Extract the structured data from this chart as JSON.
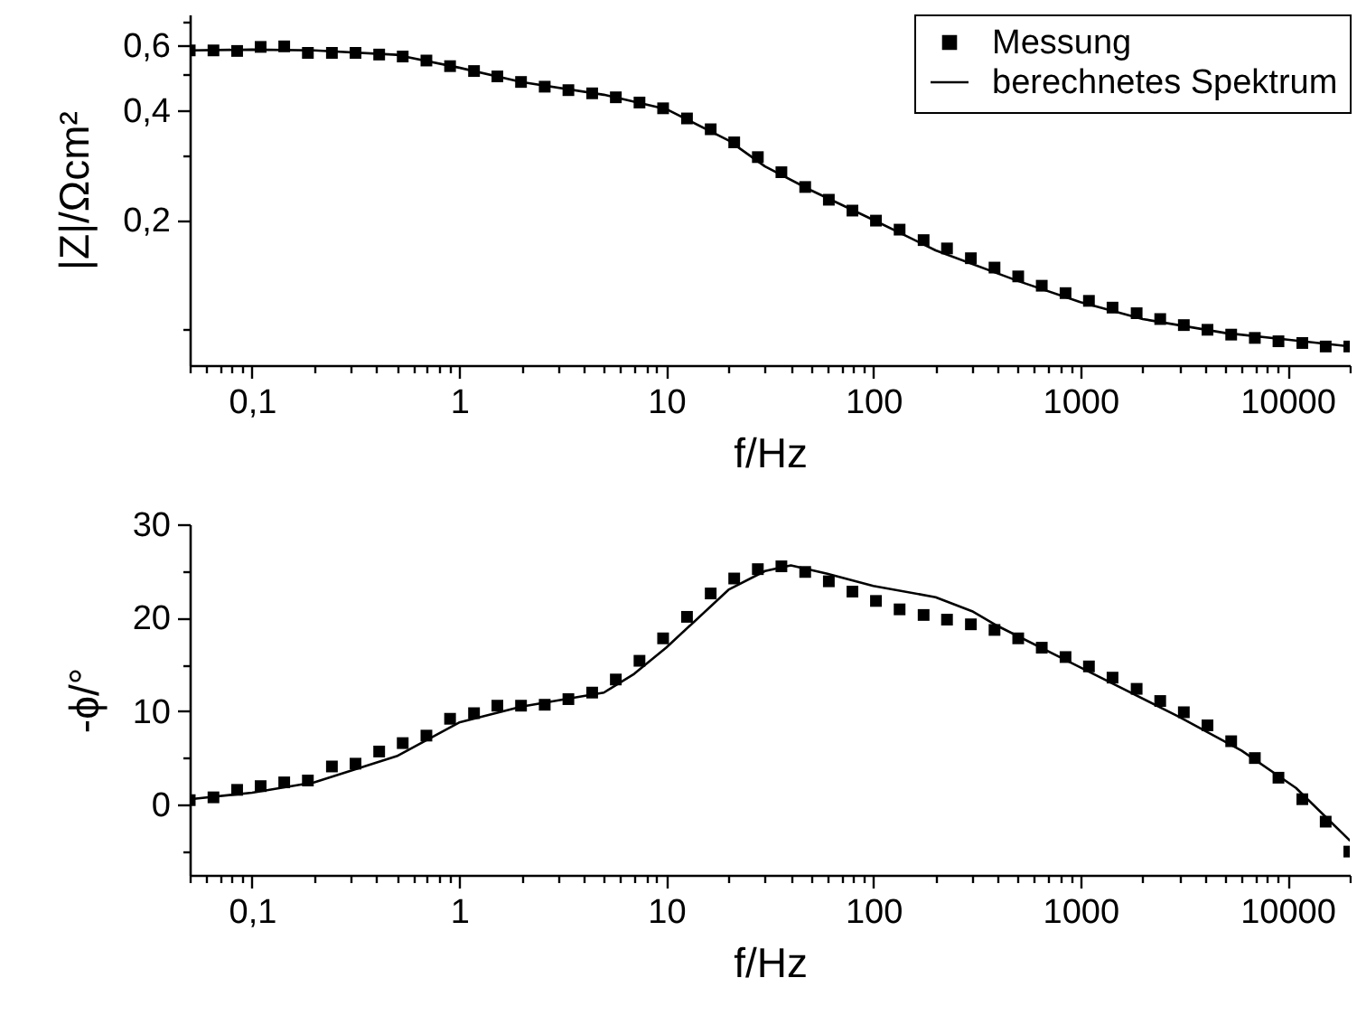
{
  "chart_data": [
    {
      "type": "scatter",
      "xlabel": "f/Hz",
      "ylabel": "|Z|/Ωcm²",
      "log": "xy",
      "legend": "top right",
      "xlim": [
        0.05,
        20000
      ],
      "ylim": [
        0.08,
        0.73
      ],
      "xticks": [
        {
          "value": 0.05,
          "label": null
        },
        {
          "value": 0.06,
          "label": null
        },
        {
          "value": 0.07,
          "label": null
        },
        {
          "value": 0.08,
          "label": null
        },
        {
          "value": 0.09,
          "label": null
        },
        {
          "value": 0.1,
          "label": "0,1"
        },
        {
          "value": 0.2,
          "label": null
        },
        {
          "value": 0.3,
          "label": null
        },
        {
          "value": 0.4,
          "label": null
        },
        {
          "value": 0.5,
          "label": null
        },
        {
          "value": 0.6,
          "label": null
        },
        {
          "value": 0.7,
          "label": null
        },
        {
          "value": 0.8,
          "label": null
        },
        {
          "value": 0.9,
          "label": null
        },
        1,
        {
          "value": 2,
          "label": null
        },
        {
          "value": 3,
          "label": null
        },
        {
          "value": 4,
          "label": null
        },
        {
          "value": 5,
          "label": null
        },
        {
          "value": 6,
          "label": null
        },
        {
          "value": 7,
          "label": null
        },
        {
          "value": 8,
          "label": null
        },
        {
          "value": 9,
          "label": null
        },
        10,
        {
          "value": 20,
          "label": null
        },
        {
          "value": 30,
          "label": null
        },
        {
          "value": 40,
          "label": null
        },
        {
          "value": 50,
          "label": null
        },
        {
          "value": 60,
          "label": null
        },
        {
          "value": 70,
          "label": null
        },
        {
          "value": 80,
          "label": null
        },
        {
          "value": 90,
          "label": null
        },
        100,
        {
          "value": 200,
          "label": null
        },
        {
          "value": 300,
          "label": null
        },
        {
          "value": 400,
          "label": null
        },
        {
          "value": 500,
          "label": null
        },
        {
          "value": 600,
          "label": null
        },
        {
          "value": 700,
          "label": null
        },
        {
          "value": 800,
          "label": null
        },
        {
          "value": 900,
          "label": null
        },
        1000,
        {
          "value": 2000,
          "label": null
        },
        {
          "value": 3000,
          "label": null
        },
        {
          "value": 4000,
          "label": null
        },
        {
          "value": 5000,
          "label": null
        },
        {
          "value": 6000,
          "label": null
        },
        {
          "value": 7000,
          "label": null
        },
        {
          "value": 8000,
          "label": null
        },
        {
          "value": 9000,
          "label": null
        },
        10000,
        {
          "value": 20000,
          "label": null
        }
      ],
      "yticks": [
        {
          "value": 0.1,
          "label": null
        },
        {
          "value": 0.2,
          "label": "0,2"
        },
        {
          "value": 0.3,
          "label": null
        },
        {
          "value": 0.4,
          "label": "0,4"
        },
        {
          "value": 0.5,
          "label": null
        },
        {
          "value": 0.6,
          "label": "0,6"
        },
        {
          "value": 0.7,
          "label": null
        }
      ],
      "x": [
        0.05,
        0.0651,
        0.0847,
        0.11,
        0.143,
        0.186,
        0.243,
        0.316,
        0.411,
        0.534,
        0.695,
        0.904,
        1.18,
        1.53,
        1.99,
        2.59,
        3.37,
        4.39,
        5.71,
        7.43,
        9.66,
        12.6,
        16.4,
        21.3,
        27.7,
        36.0,
        46.9,
        61.0,
        79.3,
        103,
        134,
        175,
        227,
        296,
        385,
        501,
        651,
        848,
        1100,
        1430,
        1870,
        2430,
        3160,
        4110,
        5350,
        6960,
        9050,
        11800,
        15300,
        19900
      ],
      "series": [
        {
          "name": "Messung",
          "marker": "square",
          "color": "#000000",
          "values": [
            0.582,
            0.582,
            0.58,
            0.595,
            0.597,
            0.573,
            0.573,
            0.573,
            0.567,
            0.56,
            0.546,
            0.527,
            0.511,
            0.494,
            0.477,
            0.463,
            0.453,
            0.444,
            0.433,
            0.419,
            0.404,
            0.379,
            0.354,
            0.326,
            0.297,
            0.27,
            0.246,
            0.227,
            0.212,
            0.199,
            0.188,
            0.176,
            0.167,
            0.157,
            0.148,
            0.14,
            0.132,
            0.126,
            0.12,
            0.115,
            0.111,
            0.107,
            0.103,
            0.1,
            0.097,
            0.095,
            0.093,
            0.092,
            0.09,
            0.09
          ]
        },
        {
          "name": "berechnetes Spektrum",
          "type": "line",
          "color": "#000000",
          "x": [
            0.05,
            0.1,
            0.2,
            0.5,
            1,
            2,
            5,
            10,
            20,
            30,
            50,
            100,
            200,
            500,
            1000,
            2000,
            5000,
            10000,
            20000
          ],
          "values": [
            0.582,
            0.585,
            0.582,
            0.566,
            0.522,
            0.477,
            0.44,
            0.402,
            0.33,
            0.28,
            0.241,
            0.2,
            0.165,
            0.136,
            0.119,
            0.107,
            0.098,
            0.094,
            0.09
          ]
        }
      ]
    },
    {
      "type": "scatter",
      "xlabel": "f/Hz",
      "ylabel": "-ϕ/°",
      "log": "x",
      "xlim": [
        0.05,
        20000
      ],
      "ylim": [
        -7.5,
        30
      ],
      "xticks": [
        {
          "value": 0.05,
          "label": null
        },
        {
          "value": 0.06,
          "label": null
        },
        {
          "value": 0.07,
          "label": null
        },
        {
          "value": 0.08,
          "label": null
        },
        {
          "value": 0.09,
          "label": null
        },
        {
          "value": 0.1,
          "label": "0,1"
        },
        {
          "value": 0.2,
          "label": null
        },
        {
          "value": 0.3,
          "label": null
        },
        {
          "value": 0.4,
          "label": null
        },
        {
          "value": 0.5,
          "label": null
        },
        {
          "value": 0.6,
          "label": null
        },
        {
          "value": 0.7,
          "label": null
        },
        {
          "value": 0.8,
          "label": null
        },
        {
          "value": 0.9,
          "label": null
        },
        1,
        {
          "value": 2,
          "label": null
        },
        {
          "value": 3,
          "label": null
        },
        {
          "value": 4,
          "label": null
        },
        {
          "value": 5,
          "label": null
        },
        {
          "value": 6,
          "label": null
        },
        {
          "value": 7,
          "label": null
        },
        {
          "value": 8,
          "label": null
        },
        {
          "value": 9,
          "label": null
        },
        10,
        {
          "value": 20,
          "label": null
        },
        {
          "value": 30,
          "label": null
        },
        {
          "value": 40,
          "label": null
        },
        {
          "value": 50,
          "label": null
        },
        {
          "value": 60,
          "label": null
        },
        {
          "value": 70,
          "label": null
        },
        {
          "value": 80,
          "label": null
        },
        {
          "value": 90,
          "label": null
        },
        100,
        {
          "value": 200,
          "label": null
        },
        {
          "value": 300,
          "label": null
        },
        {
          "value": 400,
          "label": null
        },
        {
          "value": 500,
          "label": null
        },
        {
          "value": 600,
          "label": null
        },
        {
          "value": 700,
          "label": null
        },
        {
          "value": 800,
          "label": null
        },
        {
          "value": 900,
          "label": null
        },
        1000,
        {
          "value": 2000,
          "label": null
        },
        {
          "value": 3000,
          "label": null
        },
        {
          "value": 4000,
          "label": null
        },
        {
          "value": 5000,
          "label": null
        },
        {
          "value": 6000,
          "label": null
        },
        {
          "value": 7000,
          "label": null
        },
        {
          "value": 8000,
          "label": null
        },
        {
          "value": 9000,
          "label": null
        },
        10000,
        {
          "value": 20000,
          "label": null
        }
      ],
      "yticks": [
        {
          "value": -5,
          "label": null
        },
        0,
        {
          "value": 5,
          "label": null
        },
        10,
        {
          "value": 15,
          "label": null
        },
        20,
        {
          "value": 25,
          "label": null
        },
        30
      ],
      "x": [
        0.05,
        0.0651,
        0.0847,
        0.11,
        0.143,
        0.186,
        0.243,
        0.316,
        0.411,
        0.534,
        0.695,
        0.904,
        1.18,
        1.53,
        1.99,
        2.59,
        3.37,
        4.39,
        5.71,
        7.43,
        9.66,
        12.6,
        16.4,
        21.3,
        27.7,
        36.0,
        46.9,
        61.0,
        79.3,
        103,
        134,
        175,
        227,
        296,
        385,
        501,
        651,
        848,
        1100,
        1430,
        1870,
        2430,
        3160,
        4110,
        5350,
        6960,
        9050,
        11800,
        15300,
        19900
      ],
      "series": [
        {
          "marker": "square",
          "color": "#000000",
          "values": [
            0.5,
            0.8,
            1.6,
            2.0,
            2.4,
            2.6,
            4.1,
            4.4,
            5.7,
            6.6,
            7.4,
            9.2,
            9.8,
            10.6,
            10.6,
            10.7,
            11.3,
            12.0,
            13.4,
            15.4,
            17.8,
            20.1,
            22.6,
            24.2,
            25.2,
            25.5,
            24.9,
            23.9,
            22.8,
            21.8,
            20.9,
            20.3,
            19.8,
            19.3,
            18.7,
            17.8,
            16.8,
            15.8,
            14.8,
            13.6,
            12.4,
            11.1,
            9.9,
            8.5,
            6.8,
            5.0,
            2.9,
            0.6,
            -1.8,
            -5.0
          ]
        },
        {
          "type": "line",
          "color": "#000000",
          "x": [
            0.05,
            0.1,
            0.2,
            0.5,
            1,
            2,
            5,
            7,
            10,
            20,
            30,
            40,
            60,
            100,
            200,
            300,
            400,
            1000,
            3000,
            6000,
            11000,
            20000
          ],
          "values": [
            0.6,
            1.3,
            2.4,
            5.2,
            8.8,
            10.5,
            12.0,
            14.0,
            16.8,
            23.0,
            25.0,
            25.6,
            24.7,
            23.4,
            22.2,
            20.7,
            19.1,
            14.7,
            9.4,
            5.8,
            1.8,
            -3.8
          ]
        }
      ]
    }
  ]
}
